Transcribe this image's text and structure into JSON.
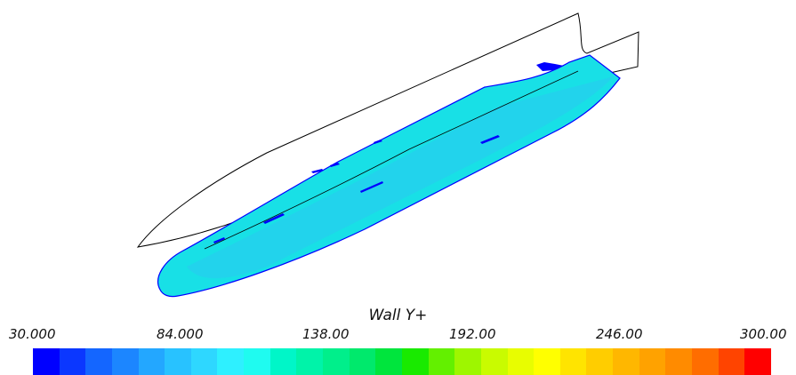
{
  "legend": {
    "title": "Wall Y+",
    "min": 30,
    "max": 300,
    "tick_labels": [
      "30.000",
      "84.000",
      "138.00",
      "192.00",
      "246.00",
      "300.00"
    ],
    "colors": [
      "#0000ff",
      "#0b37ff",
      "#1466ff",
      "#1c86ff",
      "#23a7ff",
      "#28c2ff",
      "#2ed7ff",
      "#2ef0ff",
      "#1ffbf0",
      "#00f6c8",
      "#00f3a9",
      "#00ef8b",
      "#00e96c",
      "#00e53d",
      "#19ea00",
      "#63f000",
      "#9ef600",
      "#c9fb00",
      "#e8fd00",
      "#ffff00",
      "#ffe400",
      "#ffcd00",
      "#ffb700",
      "#ffa200",
      "#ff8b00",
      "#ff6d00",
      "#ff4400",
      "#ff0000"
    ]
  },
  "model": {
    "hull_color": "#18e0e6",
    "hull_shade_color": "#2bc8f0",
    "low_value_color": "#0000ff",
    "outline_color": "#000000"
  }
}
